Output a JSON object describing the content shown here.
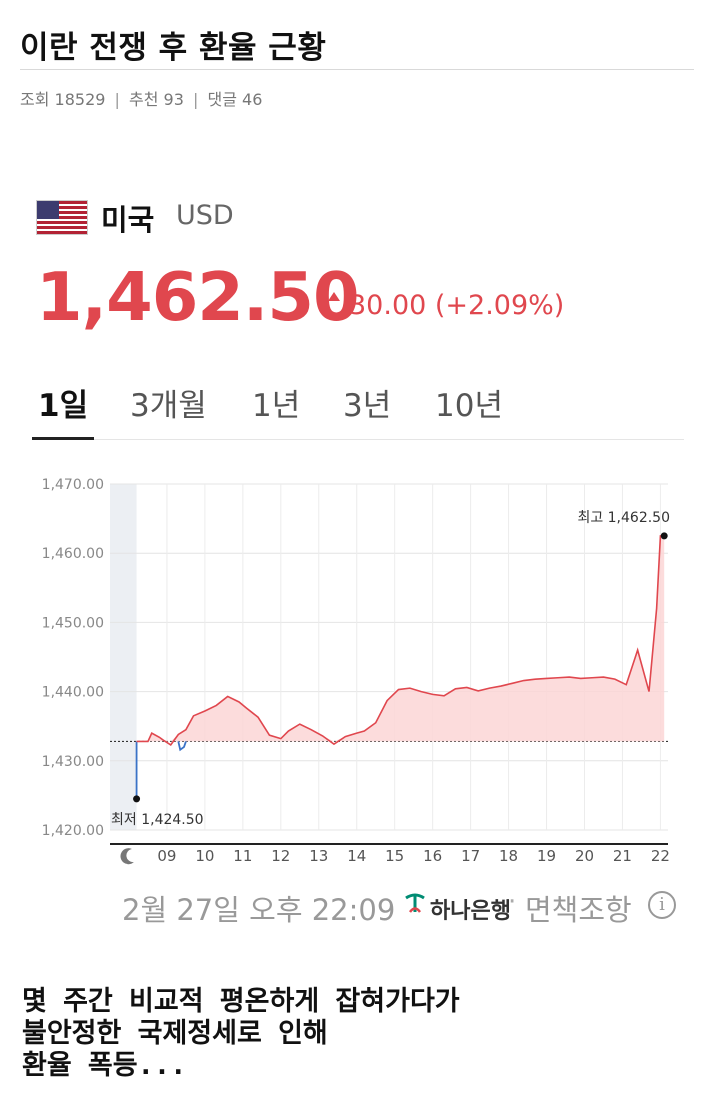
{
  "post": {
    "title": "이란 전쟁 후 환율 근황",
    "views_label": "조회 18529",
    "recommend_label": "추천 93",
    "comments_label": "댓글 46",
    "separator": "|"
  },
  "currency": {
    "flag_icon": "us-flag-icon",
    "country": "미국",
    "code": "USD",
    "rate": "1,462.50",
    "change": "30.00 (+2.09%)",
    "change_direction": "up",
    "accent_color": "#e0474e"
  },
  "tabs": [
    {
      "label": "1일",
      "active": true
    },
    {
      "label": "3개월",
      "active": false
    },
    {
      "label": "1년",
      "active": false
    },
    {
      "label": "3년",
      "active": false
    },
    {
      "label": "10년",
      "active": false
    }
  ],
  "chart_data": {
    "type": "line",
    "y_ticks": [
      "1,470.00",
      "1,460.00",
      "1,450.00",
      "1,440.00",
      "1,430.00",
      "1,420.00"
    ],
    "x_ticks": [
      "09",
      "10",
      "11",
      "12",
      "13",
      "14",
      "15",
      "16",
      "17",
      "18",
      "19",
      "20",
      "21",
      "22"
    ],
    "x_start_icon": "moon-icon",
    "ylim": [
      1420,
      1470
    ],
    "xlim": [
      7.5,
      22.2
    ],
    "baseline": 1432.8,
    "grid": true,
    "high_label": "최고 1,462.50",
    "low_label": "최저 1,424.50",
    "high": {
      "x": 22.1,
      "y": 1462.5
    },
    "low": {
      "x": 8.2,
      "y": 1424.5
    },
    "series": [
      {
        "color": "#e0474e",
        "x": [
          8.2,
          8.2,
          8.5,
          8.6,
          8.8,
          8.9,
          9.1,
          9.3,
          9.5,
          9.7,
          10.0,
          10.3,
          10.6,
          10.9,
          11.1,
          11.4,
          11.7,
          12.0,
          12.2,
          12.5,
          12.8,
          13.1,
          13.4,
          13.7,
          14.0,
          14.2,
          14.5,
          14.8,
          15.1,
          15.4,
          15.7,
          16.0,
          16.3,
          16.6,
          16.9,
          17.2,
          17.5,
          17.8,
          18.1,
          18.4,
          18.7,
          19.0,
          19.3,
          19.6,
          19.9,
          20.2,
          20.5,
          20.8,
          21.1,
          21.4,
          21.7,
          21.9,
          22.0,
          22.05,
          22.1
        ],
        "y": [
          1424.5,
          1432.8,
          1432.8,
          1434.0,
          1433.4,
          1433.0,
          1432.3,
          1433.8,
          1434.5,
          1436.5,
          1437.2,
          1438.0,
          1439.3,
          1438.5,
          1437.6,
          1436.3,
          1433.7,
          1433.2,
          1434.3,
          1435.3,
          1434.5,
          1433.6,
          1432.4,
          1433.5,
          1434.0,
          1434.3,
          1435.5,
          1438.7,
          1440.3,
          1440.5,
          1440.0,
          1439.6,
          1439.4,
          1440.4,
          1440.6,
          1440.1,
          1440.5,
          1440.8,
          1441.2,
          1441.6,
          1441.8,
          1441.9,
          1442.0,
          1442.1,
          1441.9,
          1442.0,
          1442.1,
          1441.8,
          1441.0,
          1446.0,
          1440.0,
          1452.0,
          1462.5,
          1462.5,
          1462.5
        ]
      }
    ]
  },
  "footer": {
    "datetime": "2월 27일 오후 22:09",
    "bank_icon": "hana-bank-logo-icon",
    "bank_name": "하나은행",
    "dot": "·",
    "disclaimer": "면책조항",
    "info_icon": "info-icon",
    "info_glyph": "i"
  },
  "body": {
    "lines": [
      "몇 주간 비교적 평온하게 잡혀가다가",
      "불안정한 국제정세로 인해",
      "환율 폭등..."
    ]
  }
}
